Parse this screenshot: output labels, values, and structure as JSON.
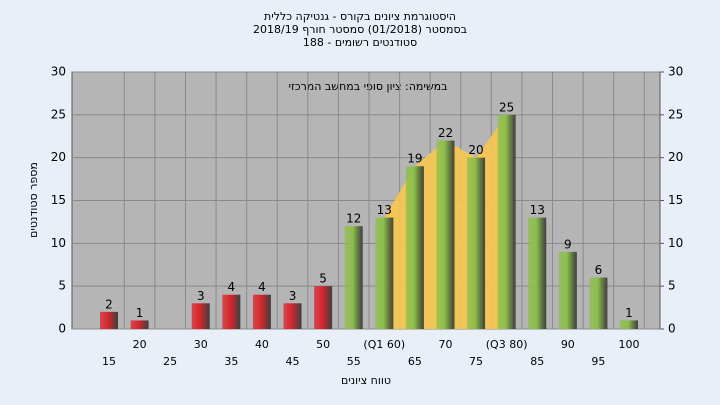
{
  "chart_data": {
    "type": "bar",
    "title": [
      "היסטוגרמת ציונים בקורס - גנטיקה כללית",
      "בסמסטר  (01/2018)  סמסטר חורף  2018/19",
      "סטודנטים רשומים - 188"
    ],
    "subtitle": "במשימה: ציון סופי במחשב המרכזי",
    "x_label": "טווח ציונים",
    "y_label": "מספר סטודנטים",
    "categories": [
      "15",
      "20",
      "25",
      "30",
      "35",
      "40",
      "45",
      "50",
      "55",
      "(Q1 60)",
      "65",
      "70",
      "75",
      "(Q3 80)",
      "85",
      "90",
      "95",
      "100"
    ],
    "values": [
      2,
      1,
      null,
      3,
      4,
      4,
      3,
      5,
      12,
      13,
      19,
      22,
      20,
      25,
      13,
      9,
      6,
      1
    ],
    "colors": [
      "#d9252b",
      "#d9252b",
      "#d9252b",
      "#d9252b",
      "#d9252b",
      "#d9252b",
      "#d9252b",
      "#d9252b",
      "#8cbf4a",
      "#8cbf4a",
      "#8cbf4a",
      "#8cbf4a",
      "#8cbf4a",
      "#8cbf4a",
      "#8cbf4a",
      "#8cbf4a",
      "#8cbf4a",
      "#8cbf4a"
    ],
    "band": {
      "start": 9,
      "end": 13,
      "color": "#f7c64e"
    },
    "ylim": [
      0,
      30
    ],
    "yticks": [
      0,
      5,
      10,
      15,
      20,
      25,
      30
    ],
    "y2lim": [
      0,
      30
    ],
    "y2ticks": [
      0,
      5,
      10,
      15,
      20,
      25,
      30
    ],
    "grid": true
  }
}
